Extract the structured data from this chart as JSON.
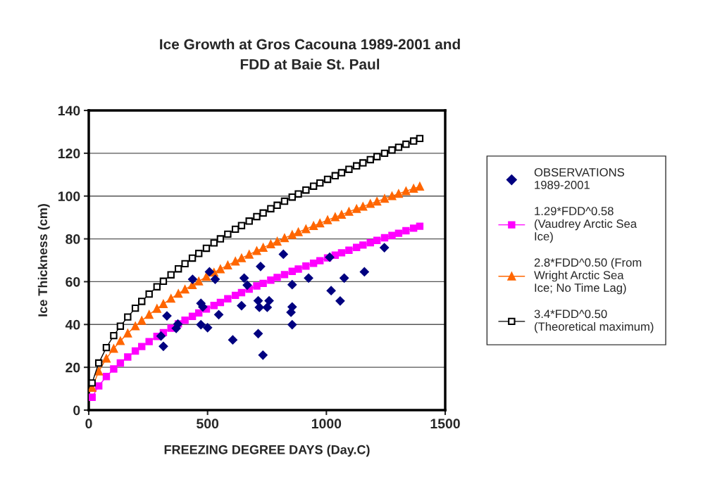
{
  "chart_data": {
    "type": "line",
    "title": "Ice Growth at Gros Cacouna 1989-2001 and\nFDD at Baie St. Paul",
    "xlabel": "FREEZING DEGREE DAYS (Day.C)",
    "ylabel": "Ice Thickness (cm)",
    "xlim": [
      0,
      1500
    ],
    "xticks": [
      0,
      500,
      1000,
      1500
    ],
    "ylim": [
      0,
      140
    ],
    "yticks": [
      0,
      20,
      40,
      60,
      80,
      100,
      120,
      140
    ],
    "grid": "y",
    "legend": "right",
    "series": [
      {
        "name": "OBSERVATIONS 1989-2001",
        "type": "scatter",
        "marker": "diamond",
        "color": "#000080",
        "x": [
          329,
          314,
          304,
          368,
          375,
          437,
          472,
          480,
          472,
          500,
          508,
          532,
          547,
          606,
          643,
          654,
          667,
          713,
          718,
          751,
          759,
          723,
          713,
          733,
          819,
          856,
          856,
          851,
          856,
          925,
          1014,
          1020,
          1058,
          1075,
          1160,
          1244
        ],
        "values": [
          44.0,
          29.8,
          34.6,
          38.2,
          40.2,
          61.1,
          49.9,
          48.2,
          39.9,
          38.5,
          64.6,
          61.1,
          44.6,
          32.8,
          48.8,
          61.7,
          58.4,
          51.1,
          48.0,
          48.0,
          51.1,
          67.1,
          35.7,
          25.7,
          72.8,
          58.6,
          48.2,
          45.7,
          39.9,
          61.7,
          71.4,
          55.8,
          51.0,
          61.7,
          64.6,
          75.9
        ]
      },
      {
        "name": "1.29*FDD^0.58 (Vaudrey Arctic Sea Ice)",
        "marker": "square",
        "color": "#ff00ff",
        "x": [
          14,
          42,
          74,
          105,
          133,
          164,
          196,
          223,
          254,
          287,
          314,
          346,
          377,
          405,
          436,
          463,
          495,
          527,
          554,
          585,
          617,
          643,
          675,
          707,
          734,
          766,
          793,
          824,
          856,
          882,
          914,
          946,
          973,
          1005,
          1037,
          1064,
          1095,
          1127,
          1154,
          1185,
          1213,
          1245,
          1276,
          1304,
          1335,
          1367,
          1393
        ],
        "values": [
          6.0,
          11.3,
          15.7,
          19.2,
          22.0,
          24.8,
          27.6,
          29.7,
          32.0,
          34.4,
          36.2,
          38.3,
          40.3,
          42.0,
          43.8,
          45.4,
          47.2,
          48.9,
          50.3,
          52.0,
          53.6,
          54.9,
          56.5,
          58.0,
          59.2,
          60.7,
          62.0,
          63.3,
          64.8,
          65.9,
          67.3,
          68.6,
          69.8,
          71.1,
          72.4,
          73.5,
          74.7,
          76.0,
          77.1,
          78.2,
          79.3,
          80.5,
          81.6,
          82.6,
          83.8,
          85.0,
          85.9
        ]
      },
      {
        "name": "2.8*FDD^0.50 (From Wright Arctic Sea Ice; No Time Lag)",
        "marker": "triangle",
        "color": "#ff6600",
        "x": [
          14,
          42,
          74,
          105,
          133,
          164,
          196,
          223,
          254,
          287,
          314,
          346,
          377,
          405,
          436,
          463,
          495,
          527,
          554,
          585,
          617,
          643,
          675,
          707,
          734,
          766,
          793,
          824,
          856,
          882,
          914,
          946,
          973,
          1005,
          1037,
          1064,
          1095,
          1127,
          1154,
          1185,
          1213,
          1245,
          1276,
          1304,
          1335,
          1367,
          1393
        ],
        "values": [
          10.5,
          18.1,
          24.1,
          28.7,
          32.3,
          35.9,
          39.2,
          41.8,
          44.6,
          47.4,
          49.6,
          52.1,
          54.4,
          56.4,
          58.5,
          60.2,
          62.3,
          64.3,
          65.9,
          67.7,
          69.5,
          71.0,
          72.7,
          74.4,
          75.9,
          77.5,
          78.8,
          80.4,
          81.9,
          83.2,
          84.6,
          86.1,
          87.3,
          88.8,
          90.2,
          91.3,
          92.7,
          94.0,
          95.1,
          96.4,
          97.5,
          98.8,
          100.0,
          101.1,
          102.3,
          103.5,
          104.5
        ]
      },
      {
        "name": "3.4*FDD^0.50 (Theoretical maximum)",
        "marker": "square",
        "color": "#000000",
        "x": [
          14,
          42,
          74,
          105,
          133,
          164,
          196,
          223,
          254,
          287,
          314,
          346,
          377,
          405,
          436,
          463,
          495,
          527,
          554,
          585,
          617,
          643,
          675,
          707,
          734,
          766,
          793,
          824,
          856,
          882,
          914,
          946,
          973,
          1005,
          1037,
          1064,
          1095,
          1127,
          1154,
          1185,
          1213,
          1245,
          1276,
          1304,
          1335,
          1367,
          1393
        ],
        "values": [
          12.7,
          22.0,
          29.2,
          34.8,
          39.2,
          43.5,
          47.6,
          50.8,
          54.2,
          57.6,
          60.2,
          63.2,
          66.0,
          68.4,
          71.0,
          73.2,
          75.6,
          78.1,
          80.0,
          82.2,
          84.5,
          86.2,
          88.3,
          90.4,
          92.1,
          94.1,
          95.7,
          97.6,
          99.5,
          101.0,
          102.8,
          104.6,
          106.1,
          107.8,
          109.5,
          110.9,
          112.5,
          114.1,
          115.5,
          117.0,
          118.4,
          120.0,
          121.5,
          122.8,
          124.2,
          125.7,
          126.9
        ]
      }
    ]
  }
}
